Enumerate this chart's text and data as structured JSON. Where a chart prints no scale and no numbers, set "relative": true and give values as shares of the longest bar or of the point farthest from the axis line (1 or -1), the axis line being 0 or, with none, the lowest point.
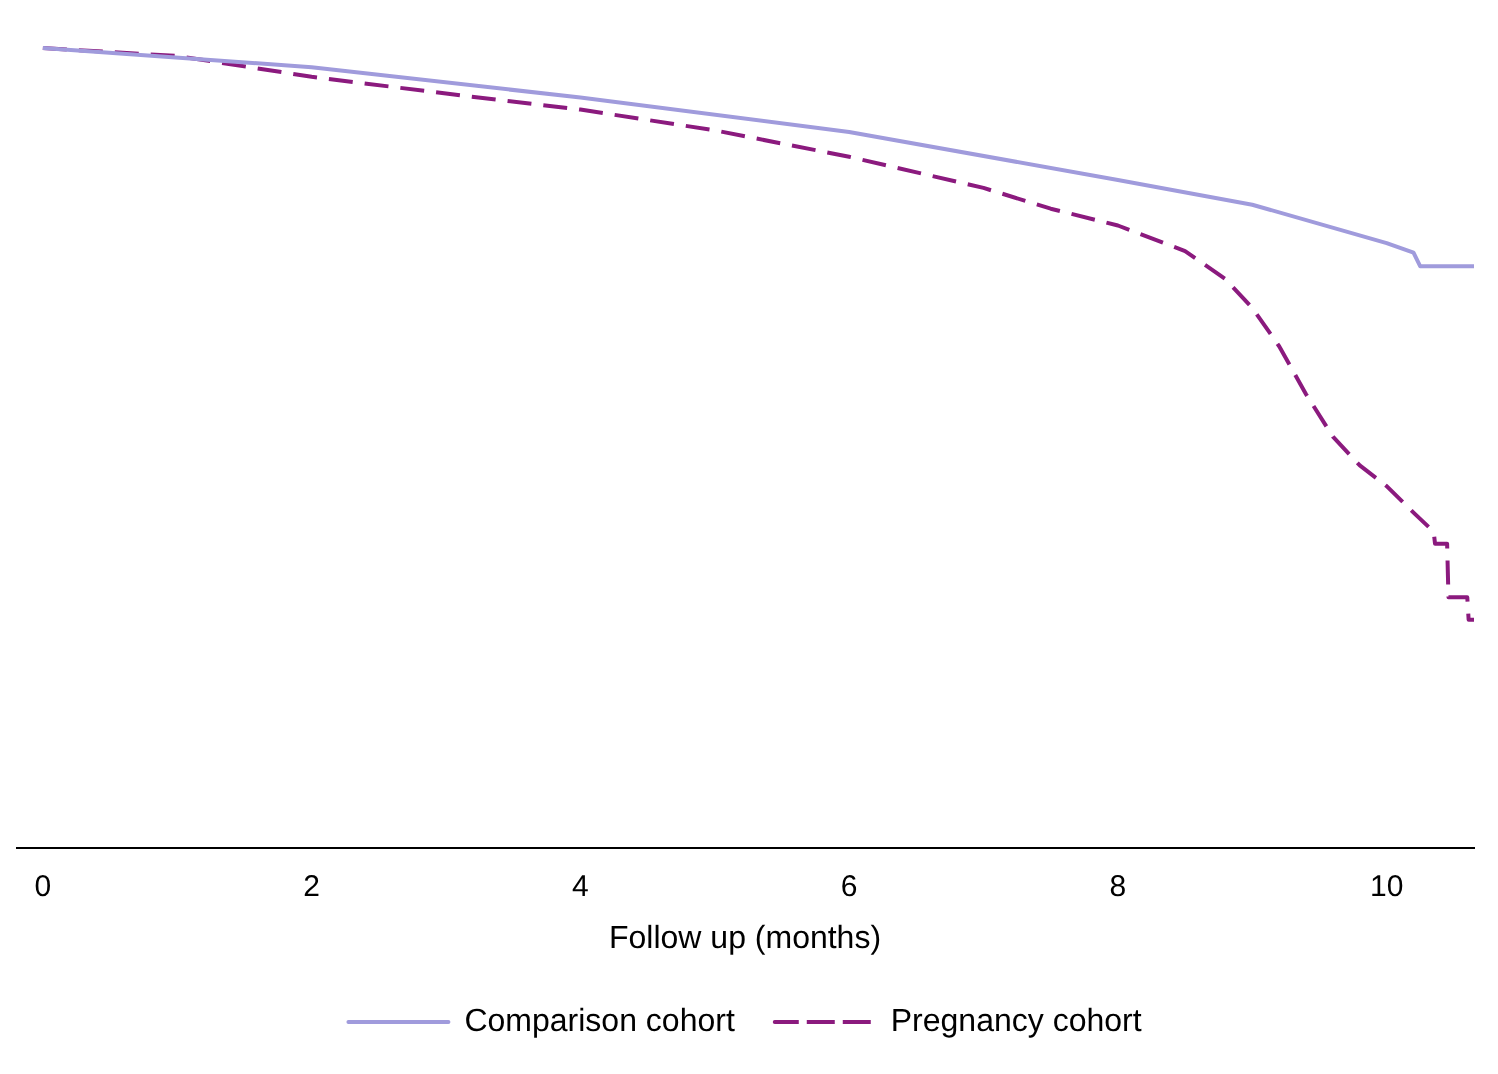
{
  "chart_data": {
    "type": "line",
    "xlabel": "Follow up (months)",
    "relative": true,
    "xlim": [
      -0.2,
      10.65
    ],
    "xticks": [
      0,
      2,
      4,
      6,
      8,
      10
    ],
    "legend": "bottom",
    "grid": false,
    "marker": "none",
    "series": [
      {
        "name": "Comparison cohort",
        "color": "#a09bdc",
        "line_style": "solid",
        "x": [
          0,
          2,
          4,
          6,
          8,
          9,
          10,
          10.2,
          10.25,
          10.65
        ],
        "values": [
          1.0,
          0.976,
          0.938,
          0.895,
          0.835,
          0.804,
          0.756,
          0.744,
          0.727,
          0.727
        ]
      },
      {
        "name": "Pregnancy cohort",
        "color": "#8b1a7e",
        "line_style": "dashed",
        "x": [
          0,
          1,
          2,
          3,
          4,
          5,
          6,
          7,
          7.5,
          8,
          8.5,
          8.8,
          9.0,
          9.2,
          9.4,
          9.6,
          9.8,
          10.0,
          10.2,
          10.35,
          10.36,
          10.45,
          10.46,
          10.6,
          10.61,
          10.65
        ],
        "values": [
          1.0,
          0.99,
          0.964,
          0.943,
          0.923,
          0.897,
          0.864,
          0.825,
          0.799,
          0.778,
          0.746,
          0.711,
          0.675,
          0.627,
          0.567,
          0.514,
          0.478,
          0.452,
          0.419,
          0.395,
          0.38,
          0.38,
          0.313,
          0.313,
          0.285,
          0.285
        ]
      }
    ]
  }
}
